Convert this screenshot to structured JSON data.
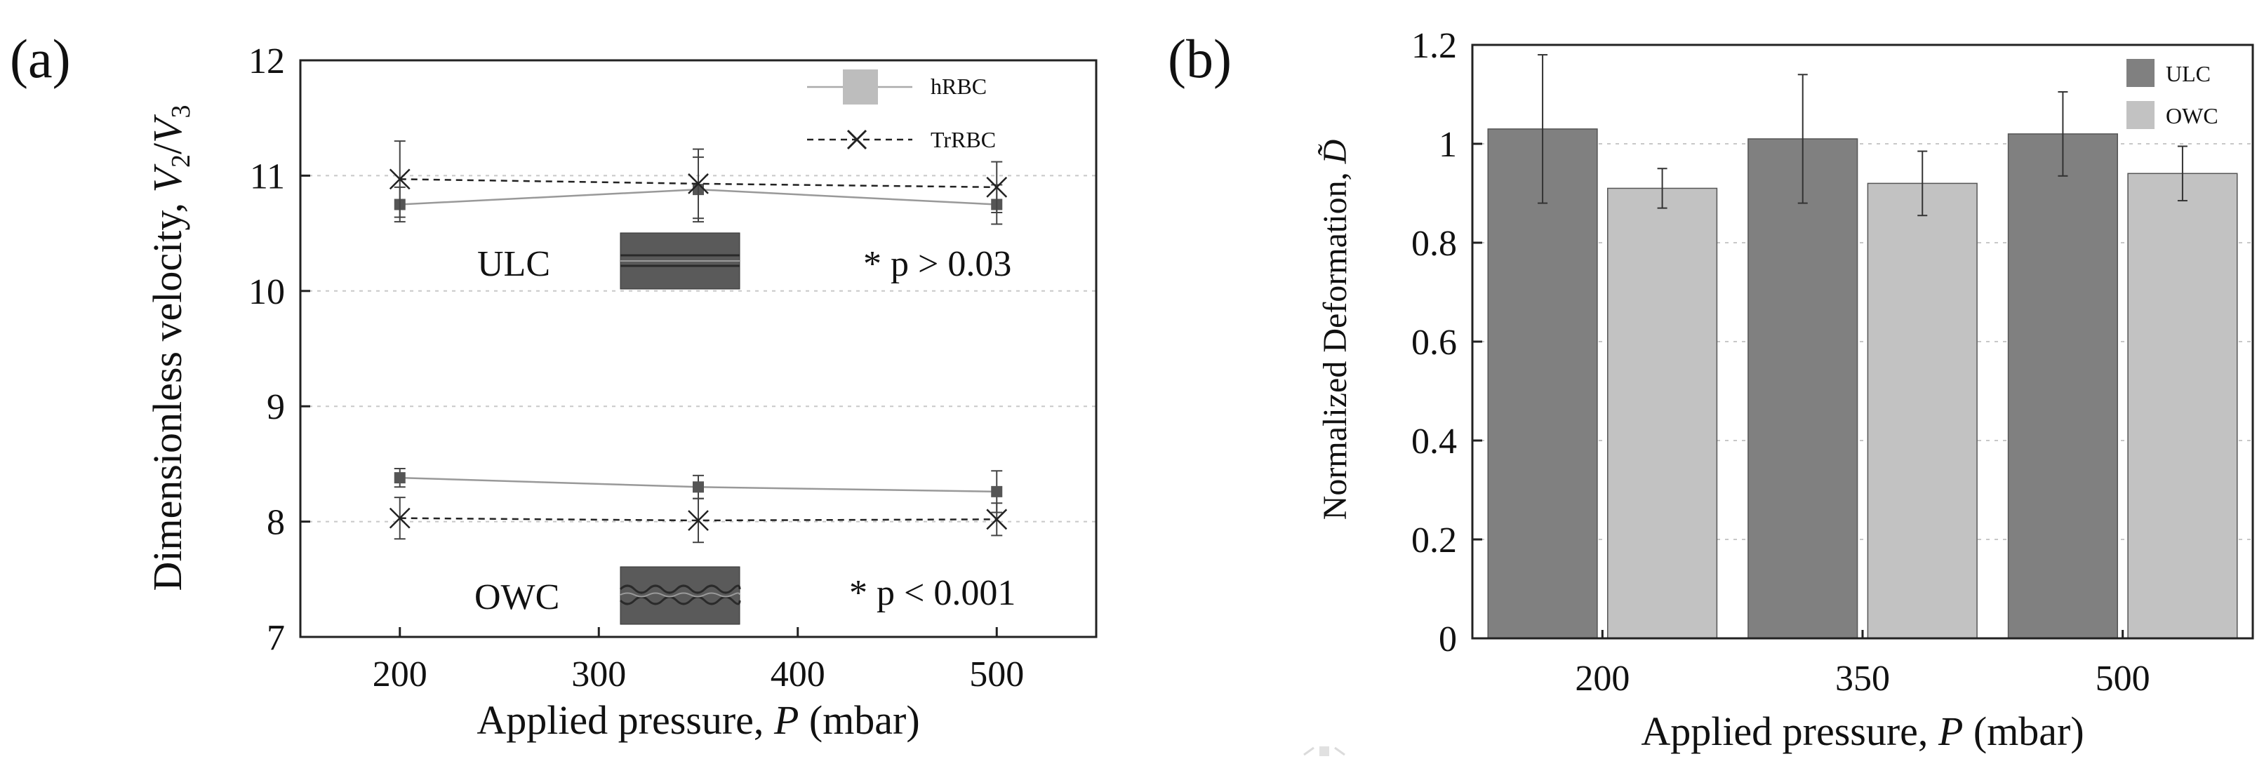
{
  "chart_data": [
    {
      "type": "line",
      "panel_label": "(a)",
      "xlabel_text": "Applied pressure, ",
      "xlabel_symbol": "P",
      "xlabel_unit": " (mbar)",
      "ylabel_text": "Dimensionless velocity, ",
      "ylabel_v2": "V",
      "ylabel_sub2": "2",
      "ylabel_slash": "/",
      "ylabel_v3": "V",
      "ylabel_sub3": "3",
      "xlim": [
        150,
        550
      ],
      "ylim": [
        7,
        12
      ],
      "x_ticks": [
        "200",
        "300",
        "400",
        "500"
      ],
      "x_tick_values": [
        200,
        300,
        400,
        500
      ],
      "y_ticks": [
        "7",
        "8",
        "9",
        "10",
        "11",
        "12"
      ],
      "y_tick_values": [
        7,
        8,
        9,
        10,
        11,
        12
      ],
      "x": [
        200,
        350,
        500
      ],
      "series": [
        {
          "name": "hRBC",
          "group": "ULC",
          "marker": "square",
          "line": "solid",
          "values": [
            10.75,
            10.88,
            10.75
          ],
          "errors": [
            0.15,
            0.28,
            0.17
          ]
        },
        {
          "name": "TrRBC",
          "group": "ULC",
          "marker": "x",
          "line": "dashed",
          "values": [
            10.97,
            10.93,
            10.9
          ],
          "errors": [
            0.33,
            0.3,
            0.22
          ]
        },
        {
          "name": "hRBC",
          "group": "OWC",
          "marker": "square",
          "line": "solid",
          "values": [
            8.38,
            8.3,
            8.26
          ],
          "errors": [
            0.08,
            0.1,
            0.18
          ]
        },
        {
          "name": "TrRBC",
          "group": "OWC",
          "marker": "x",
          "line": "dashed",
          "values": [
            8.03,
            8.01,
            8.02
          ],
          "errors": [
            0.18,
            0.19,
            0.14
          ]
        }
      ],
      "legend": [
        {
          "label": "hRBC",
          "marker": "square",
          "line": "solid"
        },
        {
          "label": "TrRBC",
          "marker": "x",
          "line": "dashed"
        }
      ],
      "legend_position": "top-right",
      "annotations": [
        {
          "label": "ULC",
          "stat": "* p > 0.03"
        },
        {
          "label": "OWC",
          "stat": "* p < 0.001"
        }
      ],
      "grid": true
    },
    {
      "type": "bar",
      "panel_label": "(b)",
      "xlabel_text": "Applied pressure, ",
      "xlabel_symbol": "P",
      "xlabel_unit": " (mbar)",
      "ylabel_text": "Normalized Deformation, ",
      "ylabel_symbol": "D̃",
      "categories": [
        "200",
        "350",
        "500"
      ],
      "ylim": [
        0,
        1.2
      ],
      "y_ticks": [
        "0",
        "0.2",
        "0.4",
        "0.6",
        "0.8",
        "1",
        "1.2"
      ],
      "y_tick_values": [
        0,
        0.2,
        0.4,
        0.6,
        0.8,
        1,
        1.2
      ],
      "series": [
        {
          "name": "ULC",
          "color": "#808080",
          "values": [
            1.03,
            1.01,
            1.02
          ],
          "errors": [
            0.15,
            0.13,
            0.085
          ]
        },
        {
          "name": "OWC",
          "color": "#c2c2c2",
          "values": [
            0.91,
            0.92,
            0.94
          ],
          "errors": [
            0.04,
            0.065,
            0.055
          ]
        }
      ],
      "legend_position": "top-right",
      "grid": true
    }
  ]
}
